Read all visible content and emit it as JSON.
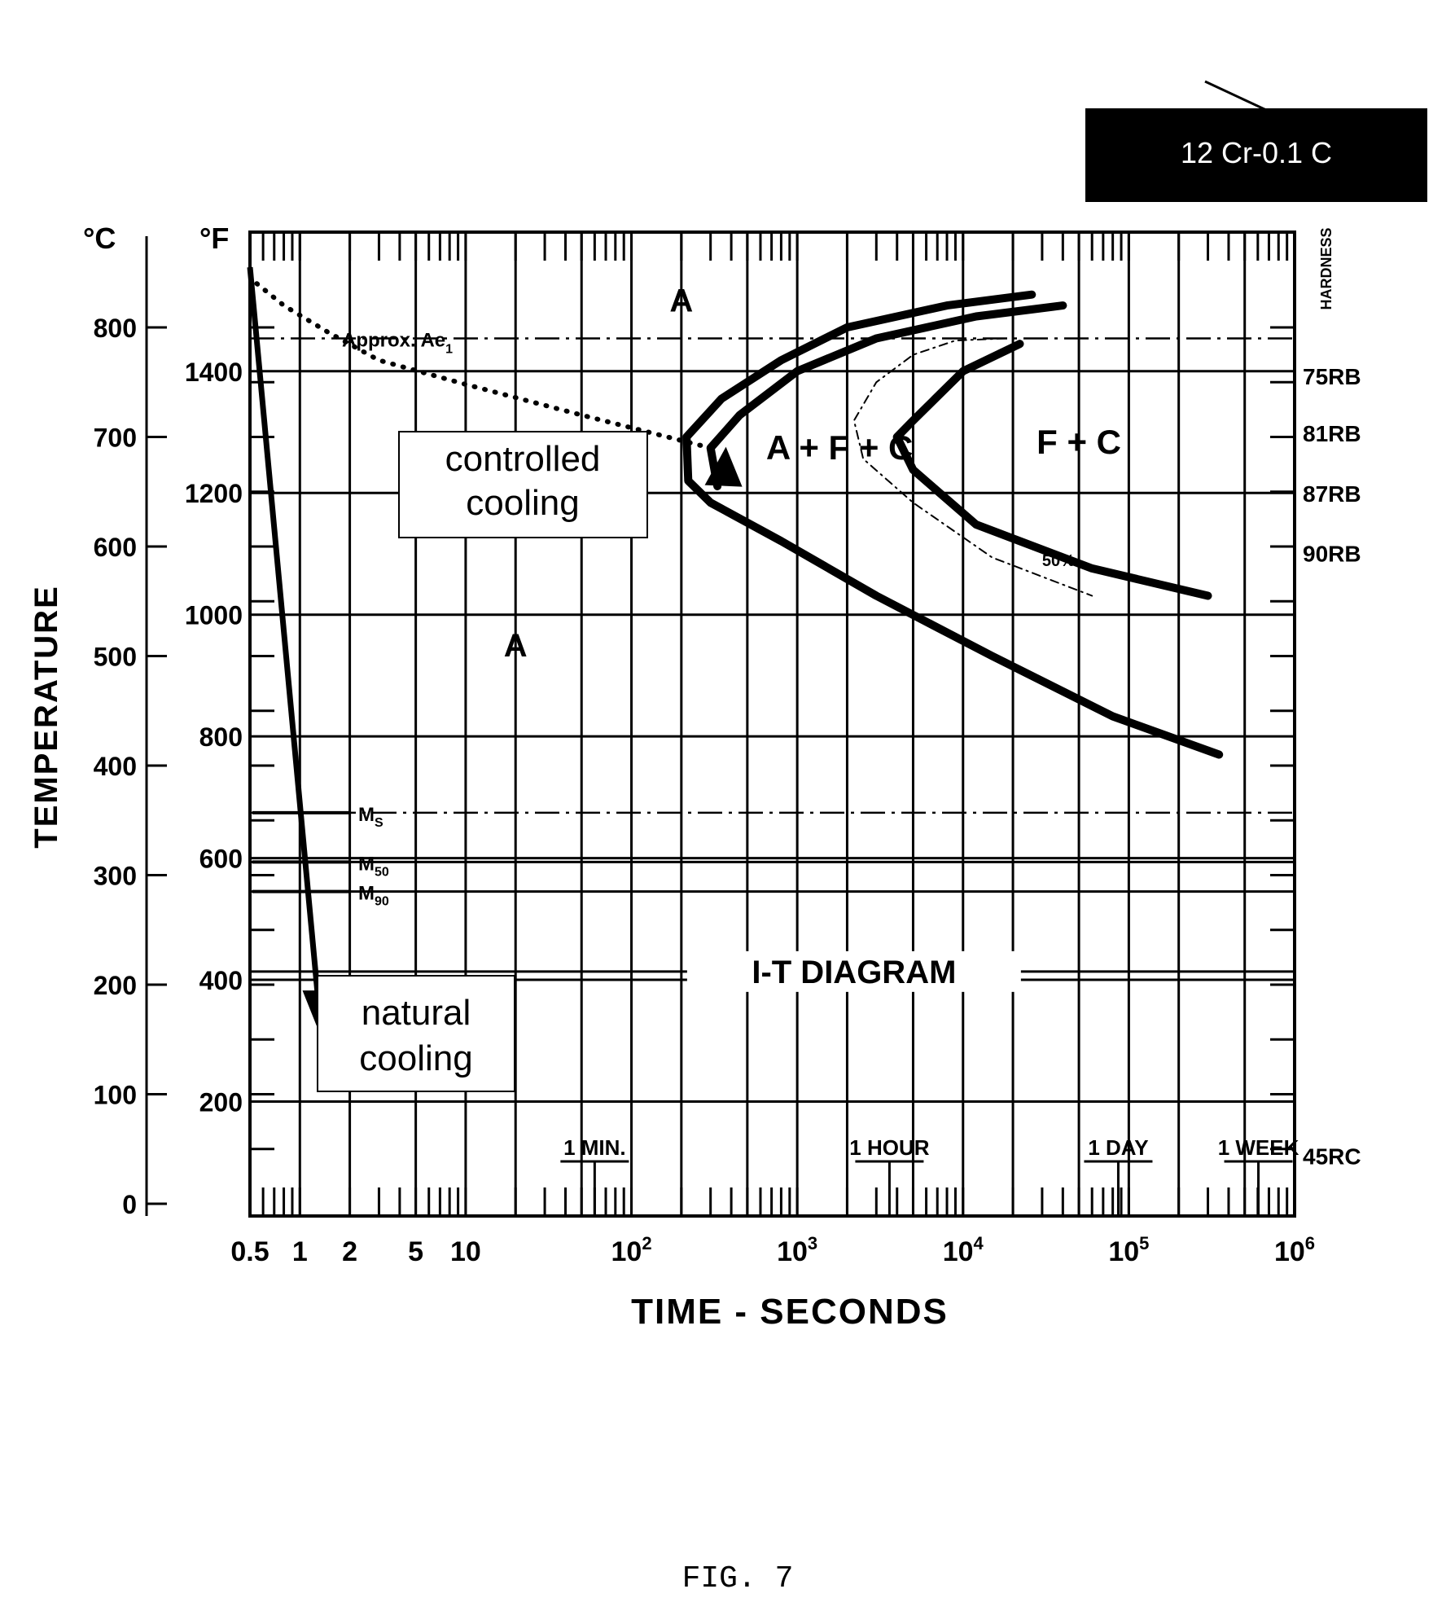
{
  "chart_data": {
    "type": "line",
    "title_box": "12 Cr-0.1 C",
    "xlabel": "TIME - SECONDS",
    "ylabel": "TEMPERATURE",
    "x_scale": "log",
    "xlim": [
      0.5,
      1000000
    ],
    "ylim_c": [
      0,
      850
    ],
    "ylim_f": [
      32,
      1562
    ],
    "x_tick_labels": [
      {
        "x": 0.5,
        "label": "0.5"
      },
      {
        "x": 1,
        "label": "1"
      },
      {
        "x": 2,
        "label": "2"
      },
      {
        "x": 5,
        "label": "5"
      },
      {
        "x": 10,
        "label": "10"
      }
    ],
    "x_power_labels": [
      {
        "x": 100,
        "base": "10",
        "exp": "2"
      },
      {
        "x": 1000,
        "base": "10",
        "exp": "3"
      },
      {
        "x": 10000,
        "base": "10",
        "exp": "4"
      },
      {
        "x": 100000,
        "base": "10",
        "exp": "5"
      },
      {
        "x": 1000000,
        "base": "10",
        "exp": "6"
      }
    ],
    "time_markers": [
      {
        "x": 60,
        "label": "1 MIN."
      },
      {
        "x": 3600,
        "label": "1 HOUR"
      },
      {
        "x": 86400,
        "label": "1 DAY"
      },
      {
        "x": 604800,
        "label": "1 WEEK"
      }
    ],
    "y_c_unit": "°C",
    "y_f_unit": "°F",
    "y_c_ticks": [
      0,
      100,
      200,
      300,
      400,
      500,
      600,
      700,
      800
    ],
    "y_f_ticks": [
      200,
      400,
      600,
      800,
      1000,
      1200,
      1400
    ],
    "hardness_title": "HARDNESS",
    "hardness": [
      {
        "t_c": 757,
        "label": "75RB"
      },
      {
        "t_c": 705,
        "label": "81RB"
      },
      {
        "t_c": 650,
        "label": "87RB"
      },
      {
        "t_c": 595,
        "label": "90RB"
      },
      {
        "t_c": 45,
        "label": "45RC"
      }
    ],
    "ae1": {
      "t_c": 790,
      "label": "Approx. Ae",
      "sub": "1"
    },
    "m_lines": [
      {
        "t_c": 357,
        "label": "M",
        "sub": "S"
      },
      {
        "t_c": 312,
        "label": "M",
        "sub": "50"
      },
      {
        "t_c": 285,
        "label": "M",
        "sub": "90"
      }
    ],
    "regions": [
      {
        "label": "A",
        "x": 200,
        "t_c": 825
      },
      {
        "label": "A + F + C",
        "x": 1800,
        "t_c": 690
      },
      {
        "label": "F + C",
        "x": 50000,
        "t_c": 695
      },
      {
        "label": "A",
        "x": 20,
        "t_c": 510
      }
    ],
    "center_label": {
      "text": "I-T DIAGRAM",
      "x": 2200,
      "t_c": 212
    },
    "series": [
      {
        "style": "solid-thick",
        "points": [
          [
            26000,
            830
          ],
          [
            8000,
            820
          ],
          [
            2000,
            800
          ],
          [
            800,
            770
          ],
          [
            350,
            735
          ],
          [
            215,
            700
          ],
          [
            220,
            660
          ],
          [
            300,
            640
          ],
          [
            800,
            605
          ],
          [
            3000,
            555
          ],
          [
            15000,
            500
          ],
          [
            80000,
            445
          ],
          [
            350000,
            410
          ]
        ]
      },
      {
        "style": "solid-thick",
        "points": [
          [
            40000,
            820
          ],
          [
            12000,
            810
          ],
          [
            3000,
            790
          ],
          [
            1000,
            760
          ],
          [
            450,
            720
          ],
          [
            300,
            690
          ],
          [
            330,
            655
          ]
        ]
      },
      {
        "style": "solid-thick",
        "points": [
          [
            22000,
            785
          ],
          [
            10000,
            760
          ],
          [
            5000,
            715
          ],
          [
            4000,
            700
          ],
          [
            5000,
            670
          ],
          [
            12000,
            620
          ],
          [
            60000,
            580
          ],
          [
            300000,
            555
          ]
        ]
      },
      {
        "style": "dash-dot-thin",
        "points": [
          [
            18000,
            790
          ],
          [
            9000,
            788
          ],
          [
            5000,
            775
          ],
          [
            3000,
            750
          ],
          [
            2200,
            715
          ],
          [
            2500,
            680
          ],
          [
            5000,
            640
          ],
          [
            15000,
            590
          ],
          [
            60000,
            555
          ]
        ]
      },
      {
        "style": "dotted",
        "points": [
          [
            0.55,
            840
          ],
          [
            0.8,
            820
          ],
          [
            1.5,
            795
          ],
          [
            3,
            770
          ],
          [
            10,
            748
          ],
          [
            50,
            720
          ],
          [
            300,
            690
          ]
        ]
      }
    ],
    "arrows": [
      {
        "label": "controlled cooling",
        "from": [
          60,
          700
        ],
        "to": [
          380,
          665
        ]
      },
      {
        "label": "natural cooling",
        "from": [
          0.5,
          855
        ],
        "to": [
          1.3,
          165
        ]
      }
    ],
    "fifty_percent_label": "50%"
  },
  "caption": "FIG. 7"
}
